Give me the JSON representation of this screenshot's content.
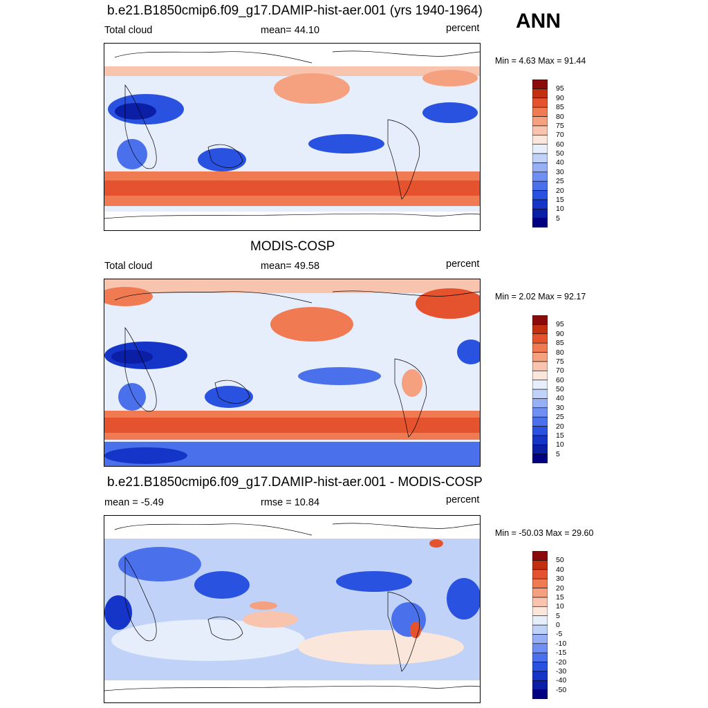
{
  "season": "ANN",
  "units": "percent",
  "panels": [
    {
      "title": "b.e21.B1850cmip6.f09_g17.DAMIP-hist-aer.001 (yrs 1940-1964)",
      "left_label": "Total cloud",
      "center_label": "mean=  44.10",
      "right_label": "percent",
      "minmax": "Min =   4.63 Max =  91.44"
    },
    {
      "title": "MODIS-COSP",
      "left_label": "Total cloud",
      "center_label": "mean=  49.58",
      "right_label": "percent",
      "minmax": "Min =   2.02 Max =  92.17"
    },
    {
      "title": "b.e21.B1850cmip6.f09_g17.DAMIP-hist-aer.001 - MODIS-COSP",
      "left_label": "mean =  -5.49",
      "center_label": "rmse =  10.84",
      "right_label": "percent",
      "minmax": "Min = -50.03 Max =  29.60"
    }
  ],
  "chart_data": [
    {
      "type": "heatmap",
      "title": "b.e21.B1850cmip6.f09_g17.DAMIP-hist-aer.001 (yrs 1940-1964)",
      "variable": "Total cloud",
      "units": "percent",
      "mean": 44.1,
      "min": 4.63,
      "max": 91.44,
      "colorbar_levels": [
        5,
        10,
        15,
        20,
        25,
        30,
        40,
        50,
        60,
        70,
        75,
        80,
        85,
        90,
        95
      ],
      "colors": [
        "#000080",
        "#0a1ea6",
        "#1535c8",
        "#2a52e0",
        "#4a70ec",
        "#6f90f2",
        "#97b0f5",
        "#c0d2f8",
        "#e6eefb",
        "#fbe6db",
        "#f8c4ad",
        "#f5a07e",
        "#f07a52",
        "#e5532e",
        "#c3300f",
        "#8b0a0a"
      ]
    },
    {
      "type": "heatmap",
      "title": "MODIS-COSP",
      "variable": "Total cloud",
      "units": "percent",
      "mean": 49.58,
      "min": 2.02,
      "max": 92.17,
      "colorbar_levels": [
        5,
        10,
        15,
        20,
        25,
        30,
        40,
        50,
        60,
        70,
        75,
        80,
        85,
        90,
        95
      ],
      "colors": [
        "#000080",
        "#0a1ea6",
        "#1535c8",
        "#2a52e0",
        "#4a70ec",
        "#6f90f2",
        "#97b0f5",
        "#c0d2f8",
        "#e6eefb",
        "#fbe6db",
        "#f8c4ad",
        "#f5a07e",
        "#f07a52",
        "#e5532e",
        "#c3300f",
        "#8b0a0a"
      ]
    },
    {
      "type": "heatmap",
      "title": "b.e21.B1850cmip6.f09_g17.DAMIP-hist-aer.001 - MODIS-COSP",
      "units": "percent",
      "mean": -5.49,
      "rmse": 10.84,
      "min": -50.03,
      "max": 29.6,
      "colorbar_levels": [
        -50,
        -40,
        -30,
        -20,
        -15,
        -10,
        -5,
        0,
        5,
        10,
        15,
        20,
        30,
        40,
        50
      ],
      "colors": [
        "#000080",
        "#0a1ea6",
        "#1535c8",
        "#2a52e0",
        "#4a70ec",
        "#6f90f2",
        "#97b0f5",
        "#c0d2f8",
        "#e6eefb",
        "#fbe6db",
        "#f8c4ad",
        "#f5a07e",
        "#f07a52",
        "#e5532e",
        "#c3300f",
        "#8b0a0a"
      ]
    }
  ]
}
